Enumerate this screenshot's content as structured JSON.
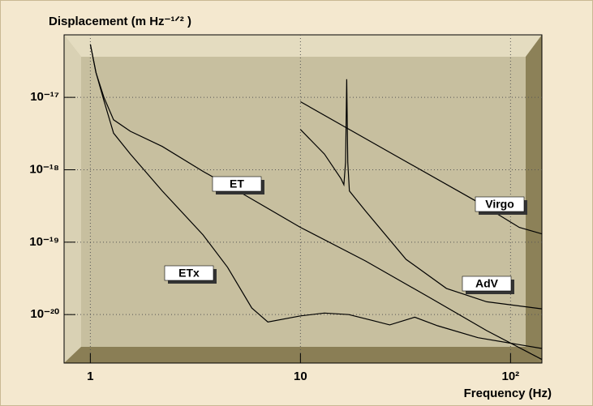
{
  "chart_data": {
    "type": "line",
    "title": "Displacement (m Hz⁻¹ᐟ² )",
    "x_label": "Frequency (Hz)",
    "log_x": true,
    "log_y": true,
    "grid": true,
    "xlim": [
      0.75,
      141
    ],
    "ylim": [
      7.3e-17,
      2.14e-21
    ],
    "xticks": [
      1,
      10,
      {
        "value": 100,
        "label": "10²"
      }
    ],
    "yticks": [
      {
        "value": 1e-17,
        "label": "10⁻¹⁷"
      },
      {
        "value": 1e-18,
        "label": "10⁻¹⁸"
      },
      {
        "value": 1e-19,
        "label": "10⁻¹⁹"
      },
      {
        "value": 1e-20,
        "label": "10⁻²⁰"
      }
    ],
    "series": [
      {
        "name": "ET",
        "color": "#000000",
        "x": [
          1.0,
          1.064,
          1.16,
          1.29,
          1.55,
          2.2,
          3.44,
          5.35,
          10,
          20.4,
          41.5,
          77,
          141
        ],
        "values": [
          5.4e-17,
          2.2e-17,
          1e-17,
          4.9e-18,
          3.4e-18,
          2.1e-18,
          9.5e-19,
          4.6e-19,
          1.6e-19,
          5.5e-20,
          1.7e-20,
          6e-21,
          2.4e-21
        ]
      },
      {
        "name": "ETx",
        "color": "#000000",
        "x": [
          1.0,
          1.064,
          1.16,
          1.29,
          1.55,
          2.2,
          3.44,
          4.5,
          5.87,
          7,
          10,
          13,
          17,
          22,
          26.6,
          35,
          45,
          70,
          141
        ],
        "values": [
          5.4e-17,
          2.2e-17,
          9e-18,
          3.2e-18,
          1.65e-18,
          5.1e-19,
          1.26e-19,
          4.5e-20,
          1.23e-20,
          7.9e-21,
          9.6e-21,
          1.05e-20,
          1e-20,
          8.3e-21,
          7.2e-21,
          9.2e-21,
          7e-21,
          4.8e-21,
          3.4e-21
        ]
      },
      {
        "name": "Virgo",
        "color": "#000000",
        "x": [
          10,
          26.6,
          70.7,
          110,
          141
        ],
        "values": [
          8.7e-18,
          1.74e-18,
          3.5e-19,
          1.6e-19,
          1.3e-19
        ]
      },
      {
        "name": "AdV",
        "color": "#000000",
        "x": [
          10,
          13,
          15.6,
          16.1,
          16.4,
          16.6,
          16.8,
          17.1,
          20.4,
          31.8,
          49.5,
          77,
          141
        ],
        "values": [
          3.6e-18,
          1.65e-18,
          7.5e-19,
          6.2e-19,
          1.27e-18,
          1.78e-17,
          1.27e-18,
          5.1e-19,
          2.7e-19,
          5.8e-20,
          2.3e-20,
          1.5e-20,
          1.2e-20
        ]
      }
    ]
  }
}
